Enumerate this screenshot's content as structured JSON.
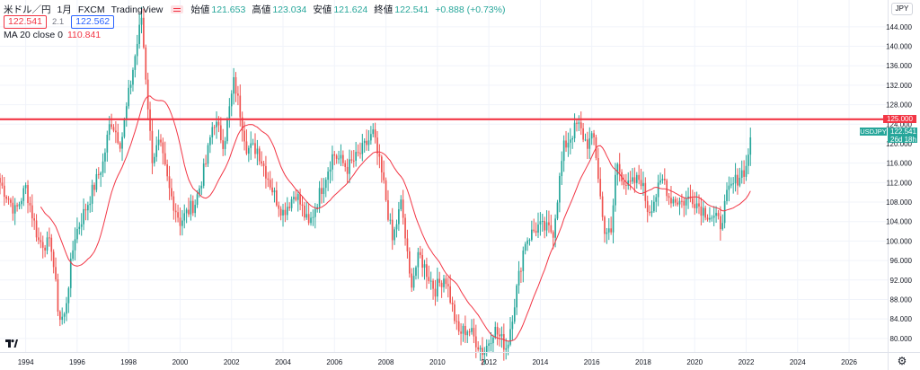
{
  "legend": {
    "symbol": "米ドル／円",
    "interval": "1月",
    "broker": "FXCM",
    "source": "TradingView",
    "ohlc": [
      {
        "label": "始値",
        "value": "121.653"
      },
      {
        "label": "高値",
        "value": "123.034"
      },
      {
        "label": "安値",
        "value": "121.624"
      },
      {
        "label": "終値",
        "value": "122.541"
      }
    ],
    "change": "+0.888 (+0.73%)",
    "sell": "122.541",
    "spread": "2.1",
    "buy": "122.562",
    "indicator_name": "MA 20 close 0",
    "indicator_value": "110.841"
  },
  "currency_button": "JPY",
  "price_line": {
    "value": 125,
    "label": "125.000",
    "color": "#f23645"
  },
  "last_price_badge": {
    "symbol": "USDJPY",
    "price": "122.541",
    "countdown": "26d 18h"
  },
  "colors": {
    "up": "#26a69a",
    "down": "#ef5350",
    "ma": "#f23645",
    "grid": "#f0f3fa",
    "axis_text": "#131722"
  },
  "icons": {
    "logo": "tradingview-logo-icon",
    "settings": "gear-icon"
  },
  "chart_data": {
    "type": "candlestick",
    "title": "",
    "xlabel": "",
    "ylabel": "",
    "x_ticks": [
      "1994",
      "1996",
      "1998",
      "2000",
      "2002",
      "2004",
      "2006",
      "2008",
      "2010",
      "2012",
      "2014",
      "2016",
      "2018",
      "2020",
      "2022",
      "2024",
      "2026"
    ],
    "y_ticks": [
      "80.000",
      "84.000",
      "88.000",
      "92.000",
      "96.000",
      "100.000",
      "104.000",
      "108.000",
      "112.000",
      "116.000",
      "120.000",
      "124.000",
      "128.000",
      "132.000",
      "136.000",
      "140.000",
      "144.000"
    ],
    "xlim": [
      1993,
      2027.5
    ],
    "ylim": [
      77.2,
      149.5
    ],
    "grid": true,
    "candle_interval": "1 month",
    "close_anchors": [
      {
        "date": "1993.0",
        "close": 112.0
      },
      {
        "date": "1993.6",
        "close": 106.0
      },
      {
        "date": "1994.0",
        "close": 111.0
      },
      {
        "date": "1994.5",
        "close": 100.0
      },
      {
        "date": "1995.0",
        "close": 99.0
      },
      {
        "date": "1995.3",
        "close": 84.0
      },
      {
        "date": "1995.5",
        "close": 84.5
      },
      {
        "date": "1995.9",
        "close": 101.0
      },
      {
        "date": "1996.5",
        "close": 109.0
      },
      {
        "date": "1997.0",
        "close": 116.0
      },
      {
        "date": "1997.3",
        "close": 125.0
      },
      {
        "date": "1997.7",
        "close": 120.0
      },
      {
        "date": "1998.0",
        "close": 130.0
      },
      {
        "date": "1998.5",
        "close": 146.0
      },
      {
        "date": "1998.9",
        "close": 117.0
      },
      {
        "date": "1999.2",
        "close": 120.0
      },
      {
        "date": "1999.6",
        "close": 110.0
      },
      {
        "date": "2000.0",
        "close": 104.0
      },
      {
        "date": "2000.6",
        "close": 108.0
      },
      {
        "date": "2001.0",
        "close": 116.0
      },
      {
        "date": "2001.3",
        "close": 125.0
      },
      {
        "date": "2001.7",
        "close": 120.0
      },
      {
        "date": "2002.1",
        "close": 133.0
      },
      {
        "date": "2002.6",
        "close": 119.0
      },
      {
        "date": "2003.0",
        "close": 119.0
      },
      {
        "date": "2003.7",
        "close": 109.0
      },
      {
        "date": "2004.0",
        "close": 106.0
      },
      {
        "date": "2004.5",
        "close": 110.0
      },
      {
        "date": "2005.0",
        "close": 103.0
      },
      {
        "date": "2005.5",
        "close": 111.0
      },
      {
        "date": "2005.95",
        "close": 118.0
      },
      {
        "date": "2006.5",
        "close": 115.0
      },
      {
        "date": "2007.0",
        "close": 118.0
      },
      {
        "date": "2007.5",
        "close": 122.0
      },
      {
        "date": "2007.9",
        "close": 112.0
      },
      {
        "date": "2008.25",
        "close": 100.0
      },
      {
        "date": "2008.6",
        "close": 108.0
      },
      {
        "date": "2008.95",
        "close": 91.0
      },
      {
        "date": "2009.3",
        "close": 97.0
      },
      {
        "date": "2009.9",
        "close": 90.0
      },
      {
        "date": "2010.3",
        "close": 93.0
      },
      {
        "date": "2010.8",
        "close": 81.0
      },
      {
        "date": "2011.2",
        "close": 82.0
      },
      {
        "date": "2011.8",
        "close": 77.0
      },
      {
        "date": "2012.2",
        "close": 82.0
      },
      {
        "date": "2012.7",
        "close": 78.0
      },
      {
        "date": "2012.95",
        "close": 86.0
      },
      {
        "date": "2013.4",
        "close": 100.0
      },
      {
        "date": "2013.9",
        "close": 103.0
      },
      {
        "date": "2014.5",
        "close": 102.0
      },
      {
        "date": "2014.9",
        "close": 119.0
      },
      {
        "date": "2015.45",
        "close": 124.0
      },
      {
        "date": "2015.8",
        "close": 120.0
      },
      {
        "date": "2016.1",
        "close": 121.0
      },
      {
        "date": "2016.45",
        "close": 103.0
      },
      {
        "date": "2016.75",
        "close": 101.0
      },
      {
        "date": "2016.95",
        "close": 116.0
      },
      {
        "date": "2017.4",
        "close": 111.0
      },
      {
        "date": "2017.9",
        "close": 113.0
      },
      {
        "date": "2018.2",
        "close": 106.0
      },
      {
        "date": "2018.8",
        "close": 113.0
      },
      {
        "date": "2019.0",
        "close": 109.0
      },
      {
        "date": "2019.5",
        "close": 108.0
      },
      {
        "date": "2019.9",
        "close": 109.0
      },
      {
        "date": "2020.2",
        "close": 107.0
      },
      {
        "date": "2020.9",
        "close": 104.0
      },
      {
        "date": "2021.0",
        "close": 103.5
      },
      {
        "date": "2021.3",
        "close": 110.0
      },
      {
        "date": "2021.8",
        "close": 114.0
      },
      {
        "date": "2022.0",
        "close": 115.0
      },
      {
        "date": "2022.2",
        "close": 122.541
      }
    ],
    "ma_period": 20
  }
}
